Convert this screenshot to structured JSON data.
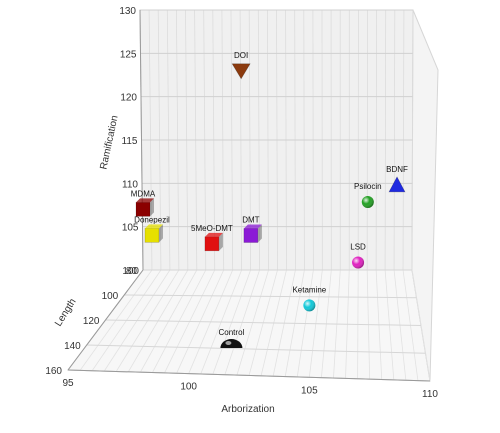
{
  "chart_data": {
    "type": "scatter",
    "projection": "3d",
    "grid": true,
    "legend": "none",
    "axes": {
      "x": {
        "label": "Arborization",
        "range": [
          95,
          110
        ],
        "ticks": [
          95,
          100,
          105,
          110
        ]
      },
      "y": {
        "label": "Ramification",
        "range": [
          100,
          130
        ],
        "ticks": [
          100,
          105,
          110,
          115,
          120,
          125,
          130
        ]
      },
      "z": {
        "label": "Length",
        "range": [
          80,
          160
        ],
        "ticks": [
          80,
          100,
          120,
          140,
          160
        ]
      }
    },
    "points": [
      {
        "label": "DOI",
        "arborization": 101.0,
        "ramification": 126,
        "length": 100,
        "shape": "triangle-down",
        "color": "#8b3a0e"
      },
      {
        "label": "BDNF",
        "arborization": 109.0,
        "ramification": 113,
        "length": 100,
        "shape": "triangle-up",
        "color": "#1f2ae0"
      },
      {
        "label": "Psilocin",
        "arborization": 107.5,
        "ramification": 111,
        "length": 100,
        "shape": "sphere",
        "color": "#22a022"
      },
      {
        "label": "DMT",
        "arborization": 101.5,
        "ramification": 107,
        "length": 100,
        "shape": "cube",
        "color": "#8b1ad6"
      },
      {
        "label": "5MeO-DMT",
        "arborization": 99.5,
        "ramification": 106,
        "length": 100,
        "shape": "cube",
        "color": "#e01010"
      },
      {
        "label": "LSD",
        "arborization": 107.0,
        "ramification": 104,
        "length": 100,
        "shape": "sphere",
        "color": "#e020c0"
      },
      {
        "label": "Ketamine",
        "arborization": 104.5,
        "ramification": 99,
        "length": 100,
        "shape": "sphere",
        "color": "#10c8d8"
      },
      {
        "label": "MDMA",
        "arborization": 95.0,
        "ramification": 107,
        "length": 80,
        "shape": "cube",
        "color": "#8b0000"
      },
      {
        "label": "Donepezil",
        "arborization": 95.5,
        "ramification": 104,
        "length": 80,
        "shape": "cube",
        "color": "#e6e000"
      },
      {
        "label": "Control",
        "arborization": 100.5,
        "ramification": 94,
        "length": 100,
        "shape": "hemisphere",
        "color": "#111111"
      }
    ]
  }
}
